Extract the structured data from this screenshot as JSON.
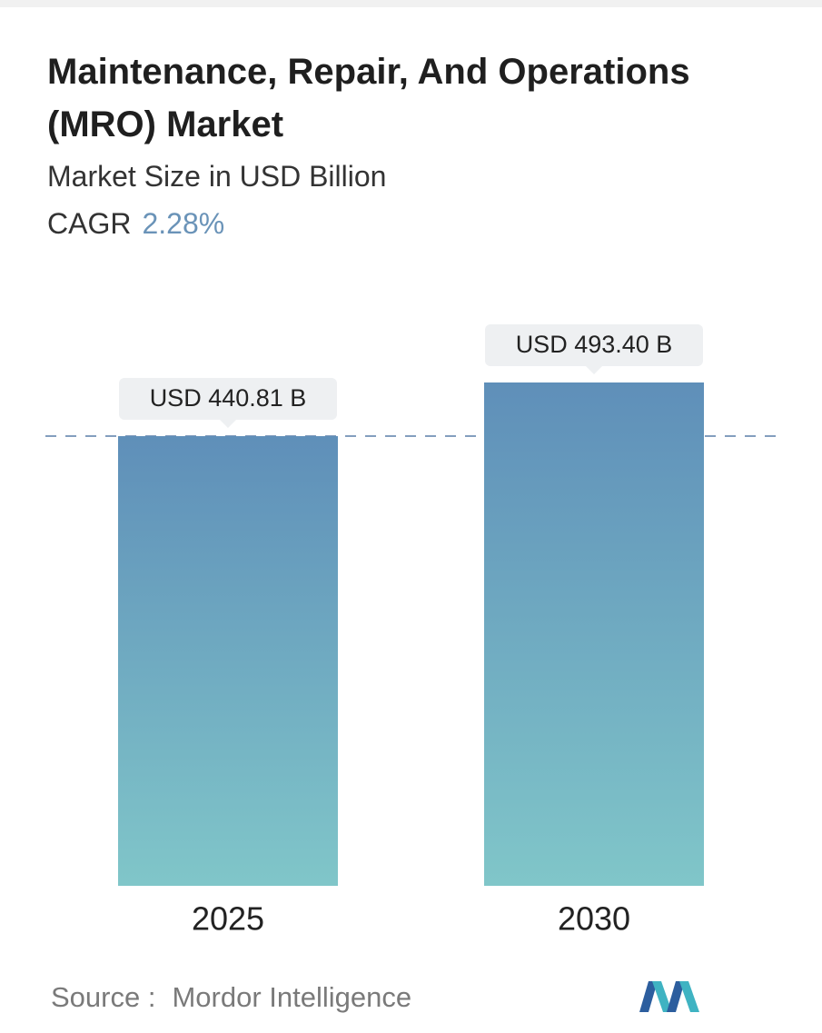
{
  "chart_data": {
    "type": "bar",
    "title": "Maintenance, Repair, And Operations (MRO) Market",
    "subtitle": "Market Size in USD Billion",
    "cagr_label": "CAGR",
    "cagr": "2.28%",
    "categories": [
      "2025",
      "2030"
    ],
    "values": [
      440.81,
      493.4
    ],
    "value_labels": [
      "USD 440.81 B",
      "USD 493.40 B"
    ],
    "colors": [
      "#5f8fb9",
      "#80c6c9"
    ],
    "source_label": "Source :",
    "source": "Mordor Intelligence"
  }
}
